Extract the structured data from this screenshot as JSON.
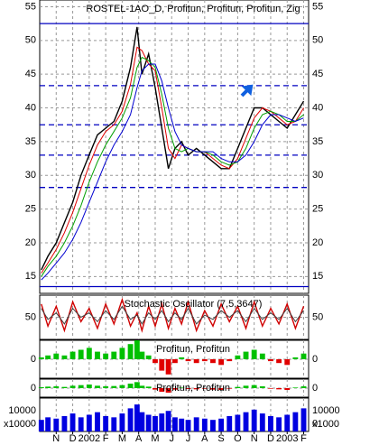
{
  "chart_data": [
    {
      "type": "line",
      "title": "ROSTEL-1AO_D, Profitun, Profitun, Profitun, Zig",
      "x": [
        -0.9,
        -0.5,
        0,
        0.5,
        1,
        1.5,
        2,
        2.5,
        3,
        3.5,
        4,
        4.5,
        4.9,
        5.2,
        5.6,
        6,
        6.4,
        6.8,
        7.2,
        7.6,
        8,
        8.5,
        9,
        9.5,
        10,
        10.5,
        11,
        11.5,
        12,
        12.5,
        13,
        13.5,
        14,
        14.5,
        15
      ],
      "series": [
        {
          "color": "#000000",
          "values": [
            16,
            18,
            20,
            23,
            26,
            30,
            33,
            36,
            37,
            38,
            41,
            46,
            52,
            45,
            48,
            43,
            37,
            31,
            34,
            35,
            33,
            34,
            33,
            32,
            31,
            31,
            34,
            37,
            40,
            40,
            39,
            38,
            37,
            39,
            41
          ]
        },
        {
          "color": "#e00000",
          "values": [
            15.5,
            17,
            19,
            21.5,
            24.5,
            28,
            31.5,
            34.5,
            36.5,
            37.5,
            39.5,
            43.5,
            49,
            48.5,
            46.5,
            45.5,
            40,
            34,
            32.5,
            34.5,
            34,
            33.5,
            33.5,
            32.5,
            31.5,
            31,
            32.5,
            35.5,
            38.5,
            40,
            39.5,
            38.5,
            37.5,
            38,
            40
          ]
        },
        {
          "color": "#00a000",
          "values": [
            15,
            16.5,
            18,
            20,
            22.5,
            25.5,
            29,
            32,
            34.5,
            36.5,
            38.5,
            41.5,
            46,
            47.5,
            47,
            46,
            42,
            37,
            34,
            33.5,
            34,
            33.5,
            33.5,
            33,
            32,
            31.5,
            32,
            34,
            37,
            39,
            39.5,
            39,
            38,
            38,
            39
          ]
        },
        {
          "color": "#0000d0",
          "values": [
            14.5,
            15.5,
            17,
            18.5,
            20.5,
            23,
            26,
            29,
            32,
            34.5,
            36.5,
            39,
            43,
            45.5,
            46.5,
            46.5,
            44,
            40,
            36.5,
            34.5,
            34,
            33.5,
            33.5,
            33.5,
            32.5,
            32,
            32,
            33,
            35,
            37.5,
            39,
            39,
            38.5,
            38,
            38.5
          ]
        }
      ],
      "levels": [
        {
          "value": 52.5,
          "style": "solid"
        },
        {
          "value": 43.3,
          "style": "dashed"
        },
        {
          "value": 37.5,
          "style": "dashed"
        },
        {
          "value": 33,
          "style": "dashed"
        },
        {
          "value": 28.2,
          "style": "dashed"
        },
        {
          "value": 13.5,
          "style": "solid"
        }
      ],
      "level_color": "#0000c0",
      "xlim": [
        -1,
        15.3
      ],
      "ylim": [
        12.5,
        56
      ],
      "yticks": [
        15,
        20,
        25,
        30,
        35,
        40,
        45,
        50,
        55
      ],
      "grid": true
    },
    {
      "type": "line",
      "title": "Stochastic Oscillator (7,5,3647)",
      "x": [
        -0.9,
        -0.5,
        0,
        0.5,
        1,
        1.5,
        2,
        2.5,
        3,
        3.5,
        4,
        4.5,
        4.9,
        5.2,
        5.6,
        6,
        6.4,
        6.8,
        7.2,
        7.6,
        8,
        8.5,
        9,
        9.5,
        10,
        10.5,
        11,
        11.5,
        12,
        12.5,
        13,
        13.5,
        14,
        14.5,
        15
      ],
      "series": [
        {
          "color": "#d00000",
          "values": [
            80,
            30,
            75,
            20,
            85,
            40,
            70,
            25,
            80,
            35,
            90,
            30,
            60,
            20,
            75,
            30,
            80,
            25,
            70,
            35,
            85,
            20,
            65,
            30,
            80,
            40,
            75,
            25,
            85,
            30,
            70,
            35,
            80,
            25,
            75
          ]
        },
        {
          "color": "#404040",
          "values": [
            70,
            45,
            60,
            35,
            70,
            50,
            60,
            40,
            65,
            45,
            75,
            45,
            55,
            35,
            60,
            45,
            65,
            40,
            60,
            45,
            70,
            35,
            55,
            45,
            65,
            50,
            65,
            40,
            70,
            45,
            60,
            45,
            70,
            40,
            65
          ]
        }
      ],
      "xlim": [
        -1,
        15.3
      ],
      "ylim": [
        0,
        100
      ],
      "yticks": [
        50
      ],
      "grid": true
    },
    {
      "type": "bar",
      "title": "Profitun, Profitun",
      "x": [
        -0.9,
        -0.5,
        0,
        0.5,
        1,
        1.5,
        2,
        2.5,
        3,
        3.5,
        4,
        4.5,
        4.9,
        5.2,
        5.6,
        6,
        6.4,
        6.8,
        7.2,
        7.6,
        8,
        8.5,
        9,
        9.5,
        10,
        10.5,
        11,
        11.5,
        12,
        12.5,
        13,
        13.5,
        14,
        14.5,
        15
      ],
      "values": [
        0.5,
        1,
        1.5,
        1,
        2,
        2.5,
        3,
        2,
        1.5,
        2,
        3,
        4,
        5,
        2,
        1,
        -1,
        -3,
        -4,
        -1,
        0.5,
        -0.5,
        -1,
        -0.5,
        -1,
        -1.5,
        -0.5,
        1,
        2,
        2.5,
        1.5,
        -0.5,
        -1,
        -1.5,
        0.5,
        1.5
      ],
      "pos_color": "#00c000",
      "neg_color": "#e00000",
      "xlim": [
        -1,
        15.3
      ],
      "ylim": [
        -5,
        5
      ],
      "yticks": [
        0
      ],
      "grid": true
    },
    {
      "type": "bar",
      "title": "Profitun, Profitun",
      "x": [
        -0.9,
        -0.5,
        0,
        0.5,
        1,
        1.5,
        2,
        2.5,
        3,
        3.5,
        4,
        4.5,
        4.9,
        5.2,
        5.6,
        6,
        6.4,
        6.8,
        7.2,
        7.6,
        8,
        8.5,
        9,
        9.5,
        10,
        10.5,
        11,
        11.5,
        12,
        12.5,
        13,
        13.5,
        14,
        14.5,
        15
      ],
      "values": [
        0.3,
        0.5,
        0.6,
        0.4,
        0.8,
        1,
        1.2,
        0.8,
        0.6,
        0.7,
        1,
        1.5,
        2,
        0.8,
        0.5,
        -0.5,
        -1.2,
        -1.5,
        -0.5,
        0.2,
        -0.3,
        -0.4,
        -0.2,
        -0.5,
        -0.6,
        -0.2,
        0.4,
        0.8,
        1,
        0.6,
        -0.2,
        -0.4,
        -0.6,
        0.2,
        0.6
      ],
      "pos_color": "#00c000",
      "neg_color": "#e00000",
      "xlim": [
        -1,
        15.3
      ],
      "ylim": [
        -3,
        3
      ],
      "yticks": [
        0
      ],
      "grid": true
    },
    {
      "type": "bar",
      "unit": "x1000",
      "x": [
        -0.9,
        -0.5,
        0,
        0.5,
        1,
        1.5,
        2,
        2.5,
        3,
        3.5,
        4,
        4.5,
        4.9,
        5.2,
        5.6,
        6,
        6.4,
        6.8,
        7.2,
        7.6,
        8,
        8.5,
        9,
        9.5,
        10,
        10.5,
        11,
        11.5,
        12,
        12.5,
        13,
        13.5,
        14,
        14.5,
        15
      ],
      "values": [
        3000,
        5000,
        4000,
        6000,
        8000,
        5000,
        7000,
        9000,
        6000,
        5000,
        8000,
        12000,
        15000,
        9000,
        7000,
        6000,
        8000,
        10000,
        5000,
        4000,
        3000,
        5000,
        4000,
        3000,
        4000,
        6000,
        7000,
        9000,
        11000,
        8000,
        6000,
        5000,
        7000,
        9000,
        12000
      ],
      "color": "#0000e0",
      "xlim": [
        -1,
        15.3
      ],
      "ylim": [
        -6000,
        20000
      ],
      "yticks": [
        0,
        10000
      ],
      "grid": false,
      "xticks": [
        {
          "value": 0,
          "label": "N"
        },
        {
          "value": 1,
          "label": "D"
        },
        {
          "value": 2,
          "label": "2002"
        },
        {
          "value": 3,
          "label": "F"
        },
        {
          "value": 4,
          "label": "M"
        },
        {
          "value": 5,
          "label": "A"
        },
        {
          "value": 6,
          "label": "M"
        },
        {
          "value": 7,
          "label": "J"
        },
        {
          "value": 8,
          "label": "J"
        },
        {
          "value": 9,
          "label": "A"
        },
        {
          "value": 10,
          "label": "S"
        },
        {
          "value": 11,
          "label": "O"
        },
        {
          "value": 12,
          "label": "N"
        },
        {
          "value": 13,
          "label": "D"
        },
        {
          "value": 14,
          "label": "2003"
        },
        {
          "value": 15,
          "label": "F"
        }
      ]
    }
  ]
}
